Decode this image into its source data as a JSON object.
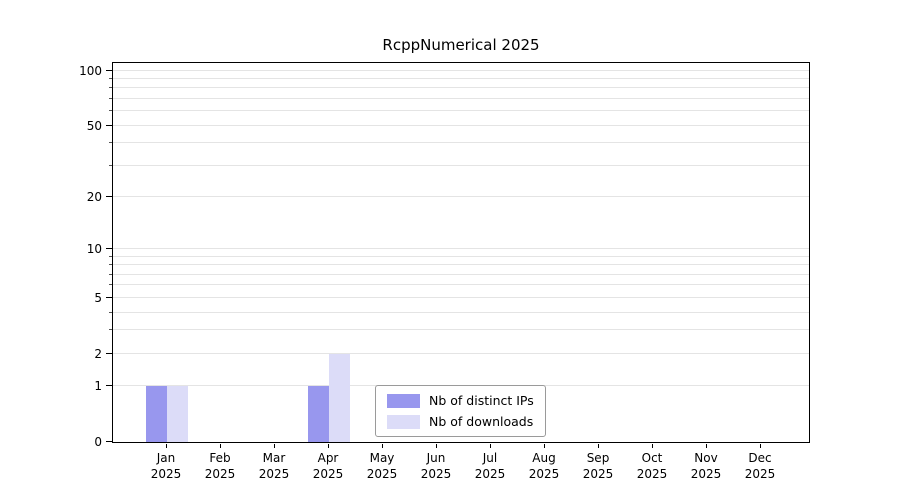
{
  "chart_data": {
    "type": "bar",
    "title": "RcppNumerical 2025",
    "months": [
      "Jan",
      "Feb",
      "Mar",
      "Apr",
      "May",
      "Jun",
      "Jul",
      "Aug",
      "Sep",
      "Oct",
      "Nov",
      "Dec"
    ],
    "year": "2025",
    "categories": [
      "Jan 2025",
      "Feb 2025",
      "Mar 2025",
      "Apr 2025",
      "May 2025",
      "Jun 2025",
      "Jul 2025",
      "Aug 2025",
      "Sep 2025",
      "Oct 2025",
      "Nov 2025",
      "Dec 2025"
    ],
    "series": [
      {
        "name": "Nb of distinct IPs",
        "color": "#9897ee",
        "values": [
          1,
          0,
          0,
          1,
          0,
          0,
          0,
          0,
          0,
          0,
          0,
          0
        ]
      },
      {
        "name": "Nb of downloads",
        "color": "#dcdcf8",
        "values": [
          1,
          0,
          0,
          2,
          0,
          0,
          0,
          0,
          0,
          0,
          0,
          0
        ]
      }
    ],
    "y_axis": {
      "scale": "log1p",
      "ticks": [
        0,
        1,
        2,
        5,
        10,
        20,
        50,
        100
      ],
      "minor_grid": [
        3,
        4,
        6,
        7,
        8,
        9,
        30,
        40,
        60,
        70,
        80,
        90
      ],
      "top_value": 110,
      "ylim": [
        0,
        110
      ]
    },
    "grid": true,
    "legend_position": "bottom-center",
    "colors": {
      "axis": "#000000",
      "gridline": "#e4e4e4",
      "background": "#ffffff"
    }
  }
}
